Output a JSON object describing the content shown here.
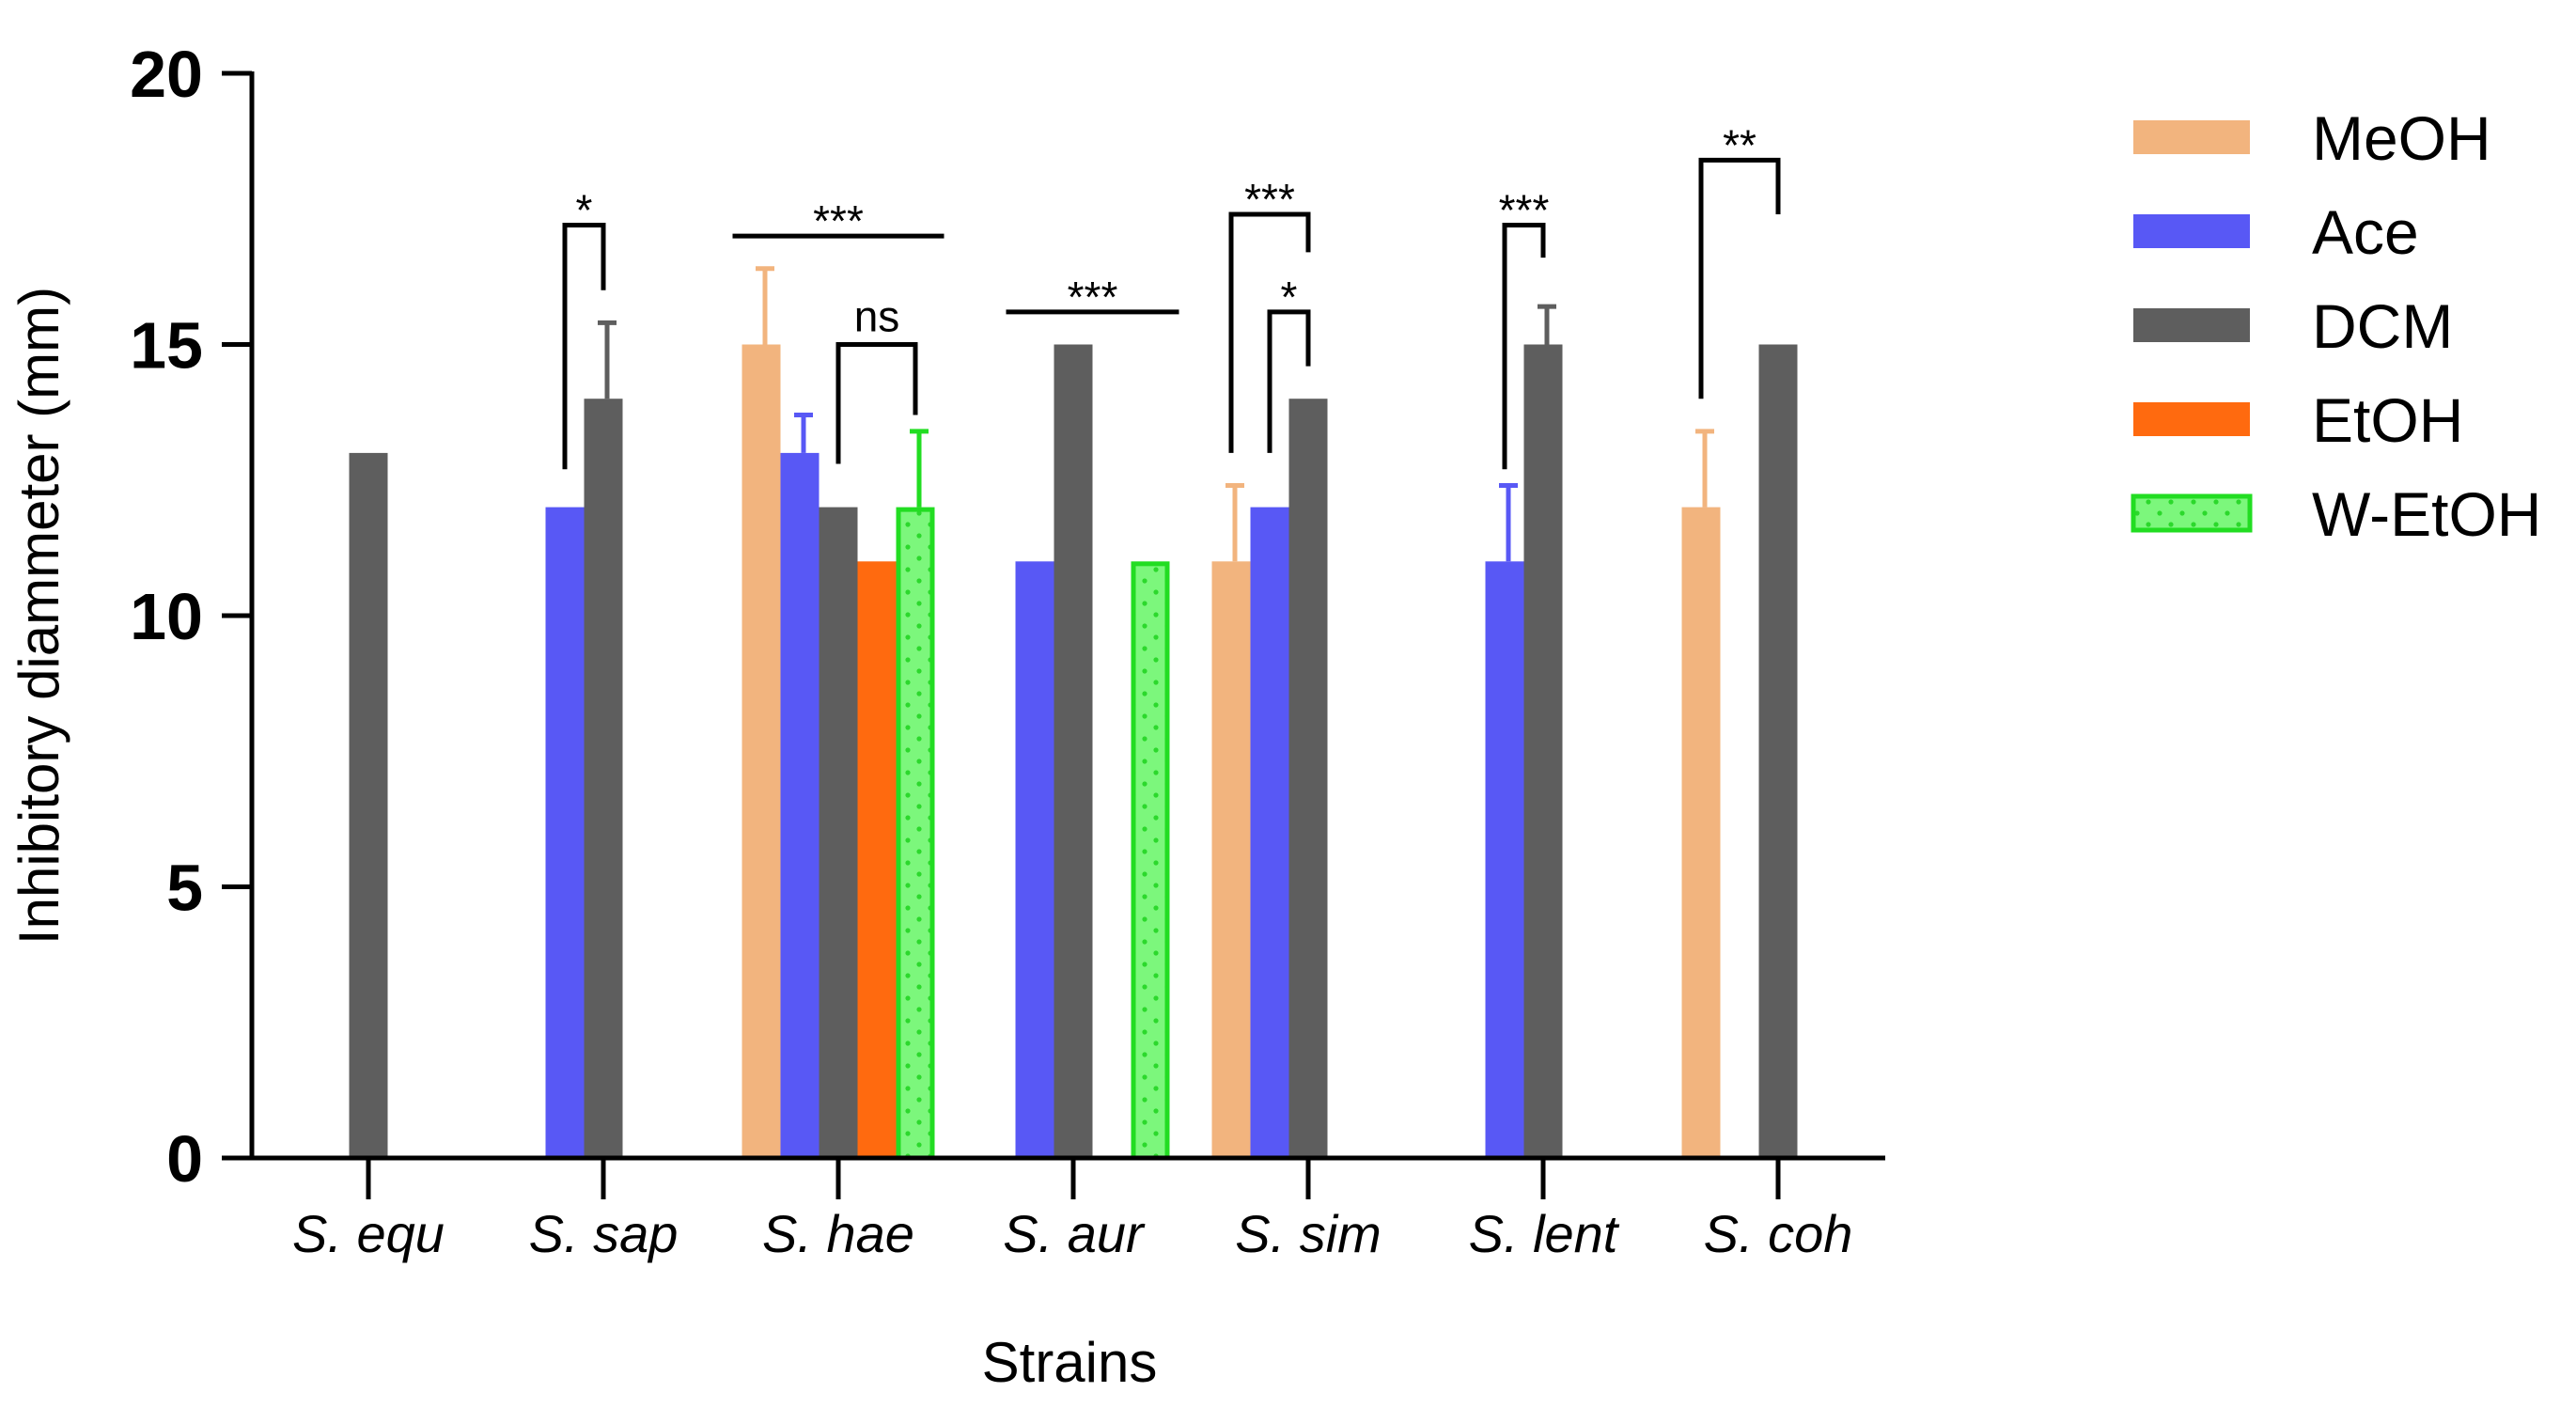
{
  "chart_data": {
    "type": "bar",
    "xlabel": "Strains",
    "ylabel": "Inhibitory diammeter (mm)",
    "ylim": [
      0,
      20
    ],
    "yticks": [
      0,
      5,
      10,
      15,
      20
    ],
    "categories": [
      "S. equ",
      "S. sap",
      "S. hae",
      "S. aur",
      "S. sim",
      "S. lent",
      "S. coh"
    ],
    "legend_position": "right",
    "series": [
      {
        "name": "MeOH",
        "color": "#F2B47E",
        "pattern": "solid",
        "values": [
          null,
          null,
          15,
          null,
          11,
          null,
          12
        ],
        "errors": [
          null,
          null,
          1.4,
          null,
          1.4,
          null,
          1.4
        ]
      },
      {
        "name": "Ace",
        "color": "#5858F5",
        "pattern": "solid",
        "values": [
          null,
          12,
          13,
          11,
          12,
          11,
          null
        ],
        "errors": [
          null,
          null,
          0.7,
          null,
          null,
          1.4,
          null
        ]
      },
      {
        "name": "DCM",
        "color": "#5E5E5E",
        "pattern": "solid",
        "values": [
          13,
          14,
          12,
          15,
          14,
          15,
          15
        ],
        "errors": [
          null,
          1.4,
          null,
          null,
          null,
          0.7,
          null
        ]
      },
      {
        "name": "EtOH",
        "color": "#FF6A0F",
        "pattern": "solid",
        "values": [
          null,
          null,
          11,
          null,
          null,
          null,
          null
        ],
        "errors": [
          null,
          null,
          null,
          null,
          null,
          null,
          null
        ]
      },
      {
        "name": "W-EtOH",
        "color": "#7CF77C",
        "pattern": "dotted",
        "edge": "#22DD22",
        "values": [
          null,
          null,
          12,
          11,
          null,
          null,
          null
        ],
        "errors": [
          null,
          null,
          1.4,
          null,
          null,
          null,
          null
        ]
      }
    ],
    "annotations": [
      {
        "label": "*",
        "category": 1,
        "from_series": 1,
        "to_series": 2,
        "bracket_y": 17.2,
        "left_leg_y": 12.7,
        "right_leg_y": 16.0
      },
      {
        "label": "***",
        "category": 2,
        "from_series": 0,
        "to_series": 4,
        "bracket_y": 17.0,
        "left_leg_y": 17.0,
        "right_leg_y": 17.0
      },
      {
        "label": "ns",
        "category": 2,
        "from_series": 2,
        "to_series": 4,
        "bracket_y": 15.0,
        "left_leg_y": 12.8,
        "right_leg_y": 13.7
      },
      {
        "label": "***",
        "category": 3,
        "from_series": 1,
        "to_series": 4,
        "bracket_y": 15.6,
        "left_leg_y": 15.6,
        "right_leg_y": 15.6
      },
      {
        "label": "***",
        "category": 4,
        "from_series": 0,
        "to_series": 2,
        "bracket_y": 17.4,
        "left_leg_y": 13.0,
        "right_leg_y": 16.7
      },
      {
        "label": "*",
        "category": 4,
        "from_series": 1,
        "to_series": 2,
        "bracket_y": 15.6,
        "left_leg_y": 13.0,
        "right_leg_y": 14.6
      },
      {
        "label": "***",
        "category": 5,
        "from_series": 1,
        "to_series": 2,
        "bracket_y": 17.2,
        "left_leg_y": 12.7,
        "right_leg_y": 16.6
      },
      {
        "label": "**",
        "category": 6,
        "from_series": 0,
        "to_series": 2,
        "bracket_y": 18.4,
        "left_leg_y": 14.0,
        "right_leg_y": 17.4
      }
    ]
  }
}
